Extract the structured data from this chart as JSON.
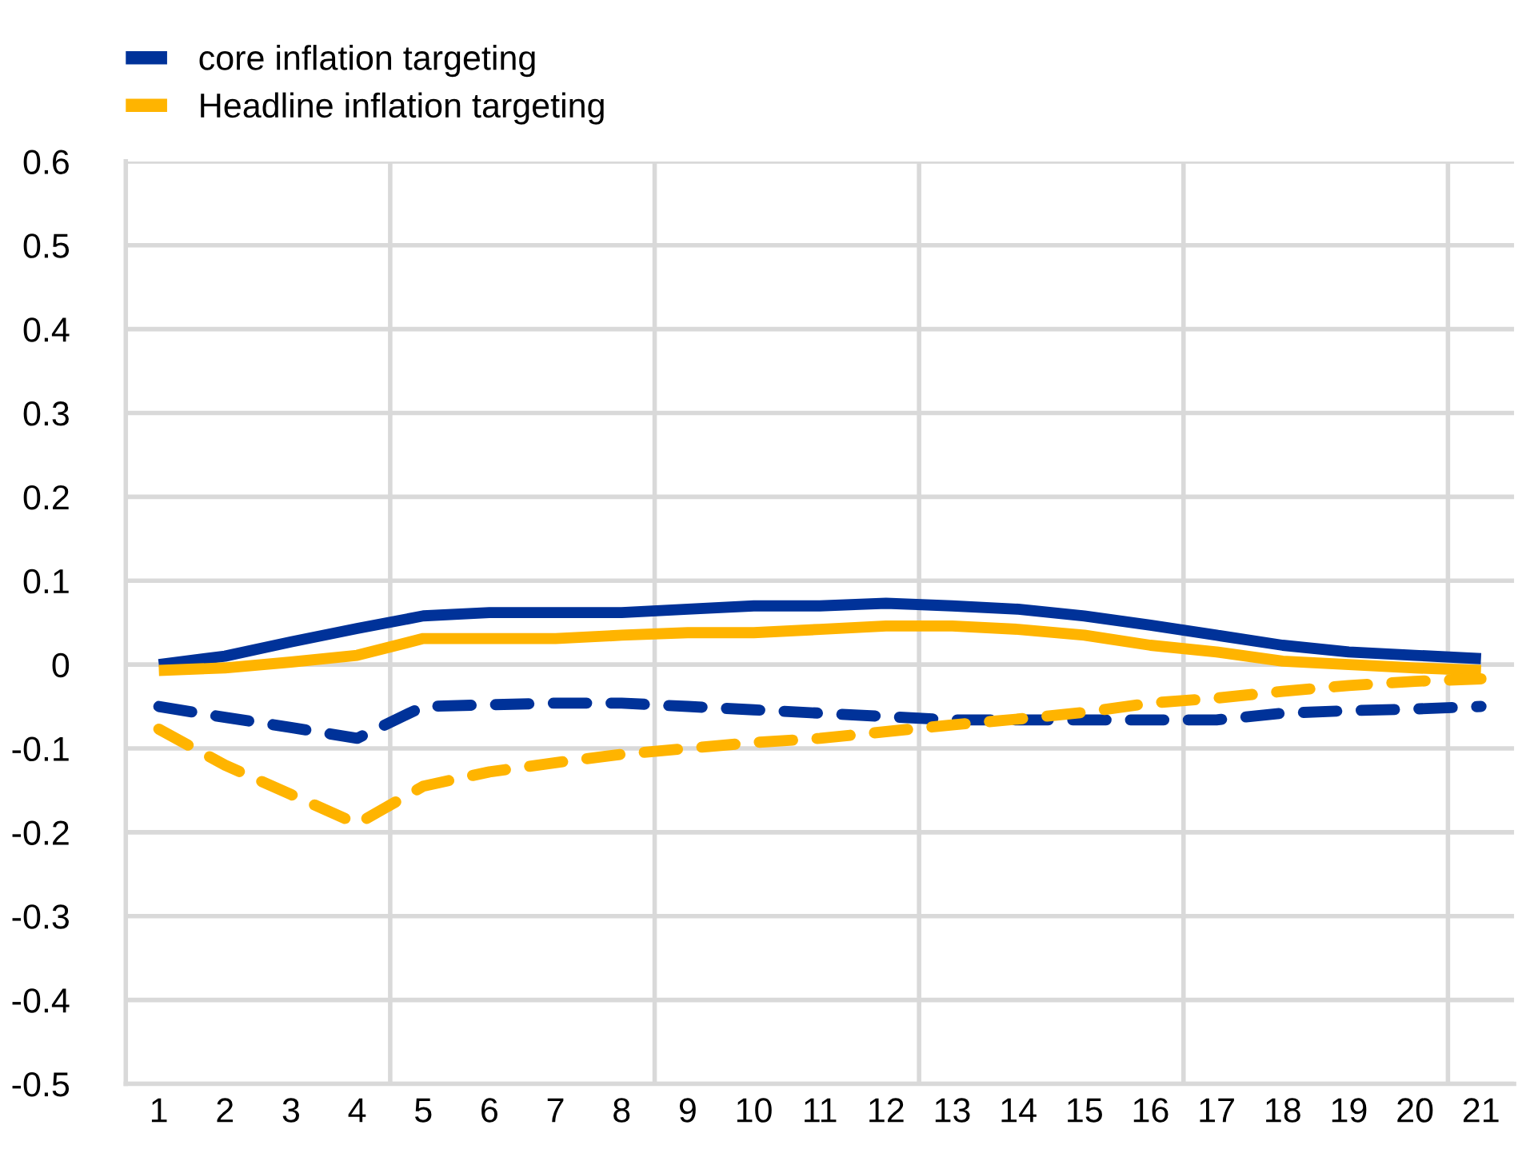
{
  "chart_data": {
    "type": "line",
    "categories": [
      "1",
      "2",
      "3",
      "4",
      "5",
      "6",
      "7",
      "8",
      "9",
      "10",
      "11",
      "12",
      "13",
      "14",
      "15",
      "16",
      "17",
      "18",
      "19",
      "20",
      "21"
    ],
    "series": [
      {
        "name": "core inflation targeting",
        "color": "#003299",
        "line_style": "solid",
        "values": [
          0.0,
          0.01,
          0.027,
          0.043,
          0.058,
          0.062,
          0.062,
          0.062,
          0.066,
          0.07,
          0.07,
          0.073,
          0.07,
          0.066,
          0.058,
          0.047,
          0.035,
          0.023,
          0.015,
          0.011,
          0.007
        ]
      },
      {
        "name": "Headline inflation targeting",
        "color": "#ffb400",
        "line_style": "solid",
        "values": [
          -0.007,
          -0.004,
          0.003,
          0.011,
          0.031,
          0.031,
          0.031,
          0.035,
          0.038,
          0.038,
          0.042,
          0.046,
          0.046,
          0.042,
          0.035,
          0.023,
          0.015,
          0.004,
          0.0,
          -0.004,
          -0.007
        ]
      },
      {
        "color": "#003299",
        "line_style": "dashed",
        "values": [
          -0.05,
          -0.063,
          -0.075,
          -0.088,
          -0.05,
          -0.048,
          -0.046,
          -0.046,
          -0.05,
          -0.054,
          -0.058,
          -0.062,
          -0.066,
          -0.066,
          -0.066,
          -0.066,
          -0.066,
          -0.058,
          -0.055,
          -0.053,
          -0.05
        ]
      },
      {
        "color": "#ffb400",
        "line_style": "dashed",
        "values": [
          -0.077,
          -0.12,
          -0.155,
          -0.19,
          -0.145,
          -0.128,
          -0.117,
          -0.107,
          -0.1,
          -0.093,
          -0.088,
          -0.08,
          -0.072,
          -0.065,
          -0.057,
          -0.046,
          -0.04,
          -0.032,
          -0.025,
          -0.02,
          -0.017
        ]
      }
    ],
    "ylim": [
      -0.5,
      0.6
    ],
    "yticks": [
      -0.5,
      -0.4,
      -0.3,
      -0.2,
      -0.1,
      0,
      0.1,
      0.2,
      0.3,
      0.4,
      0.5,
      0.6
    ],
    "grid": true,
    "legend": "top left",
    "marker": "none"
  }
}
